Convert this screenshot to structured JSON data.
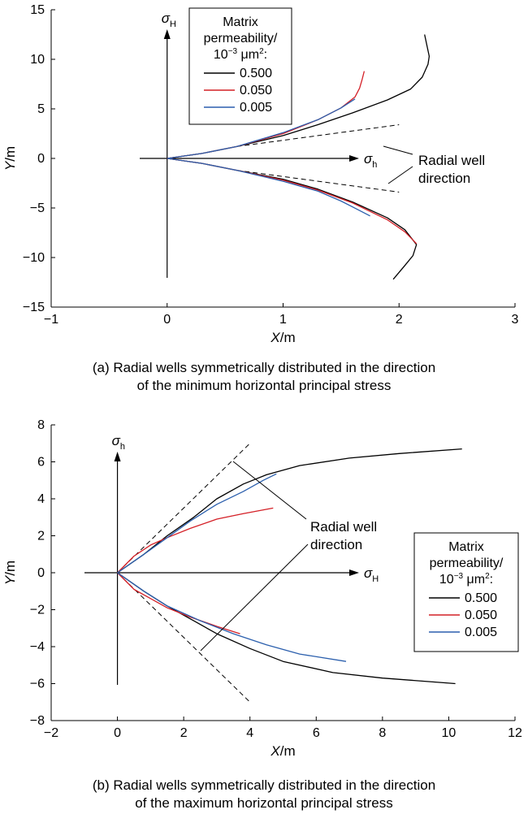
{
  "chart_data": [
    {
      "type": "line",
      "xlabel": "X/m",
      "ylabel": "Y/m",
      "xlim": [
        -1,
        3
      ],
      "ylim": [
        -15,
        15
      ],
      "xticks": [
        "−1",
        "0",
        "1",
        "2",
        "3"
      ],
      "yticks": [
        "−15",
        "−10",
        "−5",
        "0",
        "5",
        "10",
        "15"
      ],
      "stress_axis_labels": {
        "vertical": "σH",
        "horizontal": "σh"
      },
      "legend": {
        "title_lines": [
          "Matrix",
          "permeability/",
          "10⁻³ μm²:"
        ],
        "position": "top-left"
      },
      "annotation": {
        "lines": [
          "Radial well",
          "direction"
        ]
      },
      "series": [
        {
          "name": "0.500",
          "color": "#000000",
          "upper": {
            "x": [
              0,
              0.3,
              0.6,
              1.0,
              1.3,
              1.6,
              1.9,
              2.1,
              2.2,
              2.25,
              2.26,
              2.22
            ],
            "y": [
              0,
              0.5,
              1.2,
              2.3,
              3.4,
              4.6,
              5.9,
              7.0,
              8.2,
              9.5,
              10.3,
              12.5
            ]
          },
          "lower": {
            "x": [
              0,
              0.3,
              0.6,
              1.0,
              1.3,
              1.6,
              1.9,
              2.05,
              2.15,
              2.12,
              2.05,
              1.95
            ],
            "y": [
              0,
              -0.5,
              -1.2,
              -2.1,
              -3.1,
              -4.4,
              -6.0,
              -7.2,
              -8.7,
              -9.8,
              -10.8,
              -12.2
            ]
          }
        },
        {
          "name": "0.050",
          "color": "#d42027",
          "upper": {
            "x": [
              0,
              0.3,
              0.6,
              1.0,
              1.3,
              1.5,
              1.62,
              1.66,
              1.68,
              1.7
            ],
            "y": [
              0,
              0.5,
              1.2,
              2.5,
              3.9,
              5.1,
              6.2,
              7.1,
              7.9,
              8.8
            ]
          },
          "lower": {
            "x": [
              0,
              0.3,
              0.6,
              1.0,
              1.3,
              1.6,
              1.9,
              2.05,
              2.15
            ],
            "y": [
              0,
              -0.5,
              -1.2,
              -2.2,
              -3.2,
              -4.5,
              -6.2,
              -7.4,
              -8.6
            ]
          }
        },
        {
          "name": "0.005",
          "color": "#2b5fad",
          "upper": {
            "x": [
              0,
              0.3,
              0.6,
              1.0,
              1.3,
              1.5,
              1.62
            ],
            "y": [
              0,
              0.5,
              1.2,
              2.6,
              3.9,
              5.1,
              6.0
            ]
          },
          "lower": {
            "x": [
              0,
              0.3,
              0.6,
              1.0,
              1.3,
              1.5,
              1.65,
              1.75
            ],
            "y": [
              0,
              -0.5,
              -1.2,
              -2.3,
              -3.3,
              -4.3,
              -5.2,
              -5.8
            ]
          }
        }
      ],
      "caption_lines": [
        "(a) Radial wells symmetrically distributed in the direction",
        "of the minimum horizontal principal stress"
      ]
    },
    {
      "type": "line",
      "xlabel": "X/m",
      "ylabel": "Y/m",
      "xlim": [
        -2,
        12
      ],
      "ylim": [
        -8,
        8
      ],
      "xticks": [
        "−2",
        "0",
        "2",
        "4",
        "6",
        "8",
        "10",
        "12"
      ],
      "yticks": [
        "−8",
        "−6",
        "−4",
        "−2",
        "0",
        "2",
        "4",
        "6",
        "8"
      ],
      "stress_axis_labels": {
        "vertical": "σh",
        "horizontal": "σH"
      },
      "legend": {
        "title_lines": [
          "Matrix",
          "permeability/",
          "10⁻³ μm²:"
        ],
        "position": "right"
      },
      "annotation": {
        "lines": [
          "Radial well",
          "direction"
        ]
      },
      "series": [
        {
          "name": "0.500",
          "color": "#000000",
          "upper": {
            "x": [
              0,
              0.8,
              1.5,
              2.3,
              3.0,
              3.8,
              4.5,
              5.5,
              7.0,
              8.5,
              10.4
            ],
            "y": [
              0,
              1.0,
              2.0,
              3.0,
              4.0,
              4.8,
              5.3,
              5.8,
              6.2,
              6.45,
              6.7
            ]
          },
          "lower": {
            "x": [
              0,
              0.8,
              1.5,
              2.3,
              3.0,
              4.0,
              5.0,
              6.5,
              8.0,
              10.2
            ],
            "y": [
              0,
              -1.0,
              -1.8,
              -2.6,
              -3.3,
              -4.1,
              -4.8,
              -5.4,
              -5.7,
              -6.0
            ]
          }
        },
        {
          "name": "0.050",
          "color": "#d42027",
          "upper": {
            "x": [
              0,
              0.5,
              1.0,
              1.5,
              2.2,
              3.0,
              3.8,
              4.7
            ],
            "y": [
              0,
              0.9,
              1.5,
              1.9,
              2.4,
              2.9,
              3.2,
              3.5
            ]
          },
          "lower": {
            "x": [
              0,
              0.5,
              1.0,
              1.5,
              2.2,
              3.0,
              3.7
            ],
            "y": [
              0,
              -0.9,
              -1.4,
              -1.9,
              -2.4,
              -2.9,
              -3.3
            ]
          }
        },
        {
          "name": "0.005",
          "color": "#2b5fad",
          "upper": {
            "x": [
              0,
              0.8,
              1.5,
              2.2,
              3.0,
              3.8,
              4.4,
              4.8
            ],
            "y": [
              0,
              1.0,
              1.9,
              2.8,
              3.7,
              4.4,
              5.0,
              5.35
            ]
          },
          "lower": {
            "x": [
              0,
              0.8,
              1.5,
              2.5,
              3.5,
              4.5,
              5.5,
              6.9
            ],
            "y": [
              0,
              -1.0,
              -1.8,
              -2.6,
              -3.3,
              -3.9,
              -4.4,
              -4.8
            ]
          }
        }
      ],
      "caption_lines": [
        "(b) Radial wells symmetrically distributed in the direction",
        "of the maximum horizontal principal stress"
      ]
    }
  ]
}
